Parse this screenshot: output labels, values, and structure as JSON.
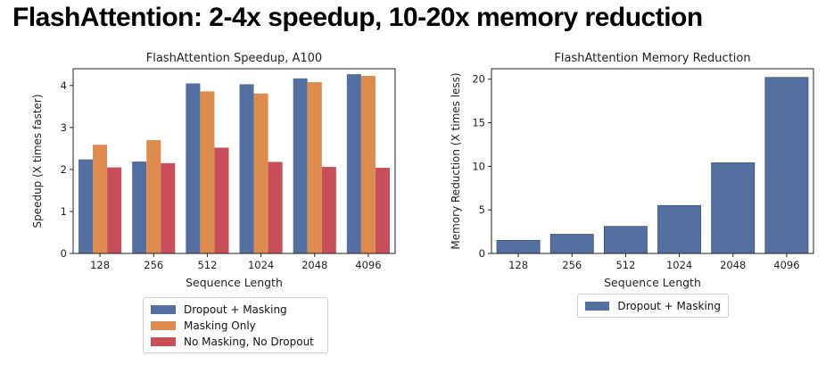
{
  "slide": {
    "title": "FlashAttention: 2-4x speedup, 10-20x memory reduction"
  },
  "chart_data": [
    {
      "type": "bar",
      "title": "FlashAttention Speedup, A100",
      "xlabel": "Sequence Length",
      "ylabel": "Speedup (X times faster)",
      "categories": [
        "128",
        "256",
        "512",
        "1024",
        "2048",
        "4096"
      ],
      "ylim": [
        0,
        4.4
      ],
      "yticks": [
        0,
        1,
        2,
        3,
        4
      ],
      "grid": false,
      "legend_position": "bottom-center",
      "series": [
        {
          "name": "Dropout + Masking",
          "color": "#5470a0",
          "values": [
            2.24,
            2.19,
            4.05,
            4.03,
            4.17,
            4.27
          ]
        },
        {
          "name": "Masking Only",
          "color": "#dd8b4e",
          "values": [
            2.59,
            2.7,
            3.86,
            3.81,
            4.08,
            4.23
          ]
        },
        {
          "name": "No Masking, No Dropout",
          "color": "#c84e5a",
          "values": [
            2.05,
            2.15,
            2.52,
            2.18,
            2.06,
            2.04
          ]
        }
      ]
    },
    {
      "type": "bar",
      "title": "FlashAttention Memory Reduction",
      "xlabel": "Sequence Length",
      "ylabel": "Memory Reduction (X times less)",
      "categories": [
        "128",
        "256",
        "512",
        "1024",
        "2048",
        "4096"
      ],
      "ylim": [
        0,
        21.2
      ],
      "yticks": [
        0,
        5,
        10,
        15,
        20
      ],
      "grid": false,
      "legend_position": "bottom-center",
      "series": [
        {
          "name": "Dropout + Masking",
          "color": "#5470a0",
          "values": [
            1.5,
            2.2,
            3.1,
            5.5,
            10.4,
            20.2
          ]
        }
      ]
    }
  ]
}
